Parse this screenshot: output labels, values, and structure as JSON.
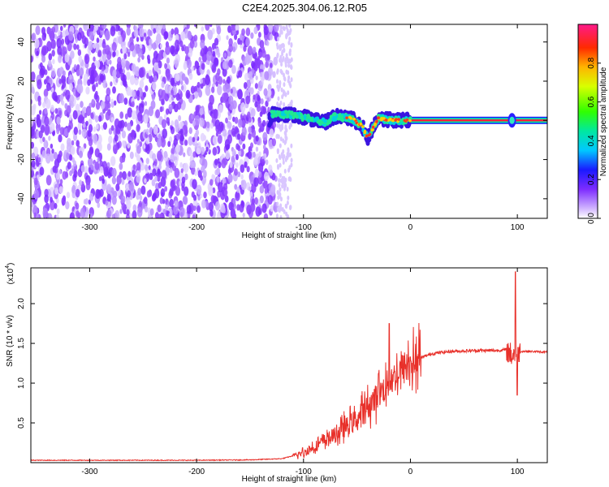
{
  "title": "C2E4.2025.304.06.12.R05",
  "chart_data": [
    {
      "type": "heatmap",
      "xlabel": "Height of straight line (km)",
      "ylabel": "Frequency (Hz)",
      "xlim": [
        -355,
        128
      ],
      "ylim": [
        -50,
        49
      ],
      "xticks": [
        -300,
        -200,
        -100,
        0,
        100
      ],
      "yticks": [
        -40,
        -20,
        0,
        20,
        40
      ],
      "grid": false,
      "noise_region": {
        "x": [
          -355,
          -125
        ],
        "level": "low amplitude (~0.1-0.25), broad in frequency"
      },
      "signal_track": [
        {
          "x": -130,
          "freq": 3
        },
        {
          "x": -110,
          "freq": 3
        },
        {
          "x": -95,
          "freq": 1
        },
        {
          "x": -80,
          "freq": -1
        },
        {
          "x": -70,
          "freq": 2
        },
        {
          "x": -55,
          "freq": 1
        },
        {
          "x": -45,
          "freq": -3
        },
        {
          "x": -40,
          "freq": -9
        },
        {
          "x": -30,
          "freq": 1
        },
        {
          "x": -15,
          "freq": 0
        },
        {
          "x": 0,
          "freq": 0
        },
        {
          "x": 128,
          "freq": 0
        }
      ],
      "colorbar": {
        "label": "Normalized spectral amplitude",
        "range": [
          0,
          1
        ],
        "ticks": [
          0.0,
          0.2,
          0.4,
          0.6,
          0.8
        ]
      }
    },
    {
      "type": "line",
      "xlabel": "Height of straight line (km)",
      "ylabel": "SNR (10 * v/v)",
      "multiplier": "(x10",
      "multiplier_exp": "4",
      "xlim": [
        -355,
        128
      ],
      "ylim": [
        0,
        2.45
      ],
      "xticks": [
        -300,
        -200,
        -100,
        0,
        100
      ],
      "yticks": [
        0.5,
        1.0,
        1.5,
        2.0
      ],
      "line_color": "#e8302a",
      "grid": false,
      "series": [
        {
          "points": [
            [
              -355,
              0.03
            ],
            [
              -300,
              0.03
            ],
            [
              -250,
              0.03
            ],
            [
              -200,
              0.03
            ],
            [
              -150,
              0.035
            ],
            [
              -120,
              0.05
            ],
            [
              -100,
              0.12
            ],
            [
              -90,
              0.2
            ],
            [
              -80,
              0.28
            ],
            [
              -70,
              0.35
            ],
            [
              -60,
              0.45
            ],
            [
              -50,
              0.55
            ],
            [
              -40,
              0.7
            ],
            [
              -30,
              0.85
            ],
            [
              -20,
              1.0
            ],
            [
              -10,
              1.15
            ],
            [
              0,
              1.25
            ],
            [
              10,
              1.32
            ],
            [
              20,
              1.37
            ],
            [
              30,
              1.39
            ],
            [
              40,
              1.4
            ],
            [
              60,
              1.41
            ],
            [
              80,
              1.41
            ],
            [
              90,
              1.42
            ],
            [
              95,
              1.35
            ],
            [
              100,
              1.4
            ],
            [
              110,
              1.4
            ],
            [
              128,
              1.39
            ]
          ],
          "spikes": [
            {
              "x": -20,
              "y": 1.75
            },
            {
              "x": -30,
              "y": 1.12
            },
            {
              "x": 0,
              "y": 1.33
            },
            {
              "x": 98,
              "y": 2.4
            },
            {
              "x": 100,
              "y": 0.85
            }
          ]
        }
      ]
    }
  ]
}
